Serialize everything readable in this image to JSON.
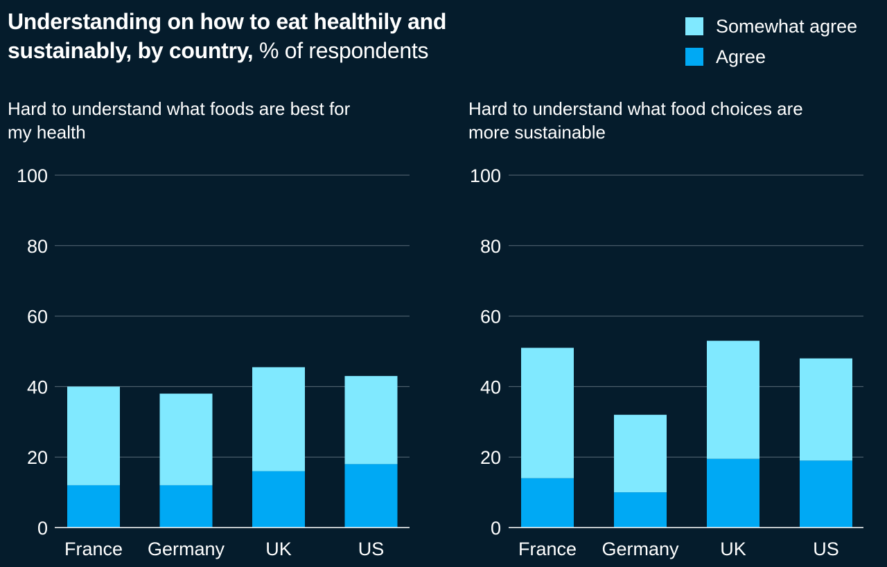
{
  "header": {
    "title_bold": "Understanding on how to eat healthily and sustainably, by country,",
    "title_light": " % of respondents"
  },
  "legend": {
    "items": [
      {
        "label": "Somewhat agree",
        "color": "#80e9ff"
      },
      {
        "label": "Agree",
        "color": "#00a9f4"
      }
    ]
  },
  "colors": {
    "background": "#051c2c",
    "somewhat_agree": "#80e9ff",
    "agree": "#00a9f4",
    "gridline": "#5a6b78"
  },
  "chart_data": [
    {
      "type": "bar",
      "stacked": true,
      "title": "Hard to understand what foods are best for my health",
      "categories": [
        "France",
        "Germany",
        "UK",
        "US"
      ],
      "series": [
        {
          "name": "Agree",
          "values": [
            12,
            12,
            16,
            18
          ]
        },
        {
          "name": "Somewhat agree",
          "values": [
            28,
            26,
            29.5,
            25
          ]
        }
      ],
      "ylim": [
        0,
        100
      ],
      "yticks": [
        "0",
        "20",
        "40",
        "60",
        "80",
        "100"
      ],
      "grid": true
    },
    {
      "type": "bar",
      "stacked": true,
      "title": "Hard to understand what food choices are more sustainable",
      "categories": [
        "France",
        "Germany",
        "UK",
        "US"
      ],
      "series": [
        {
          "name": "Agree",
          "values": [
            14,
            10,
            19.5,
            19
          ]
        },
        {
          "name": "Somewhat agree",
          "values": [
            37,
            22,
            33.5,
            29
          ]
        }
      ],
      "ylim": [
        0,
        100
      ],
      "yticks": [
        "0",
        "20",
        "40",
        "60",
        "80",
        "100"
      ],
      "grid": true
    }
  ]
}
